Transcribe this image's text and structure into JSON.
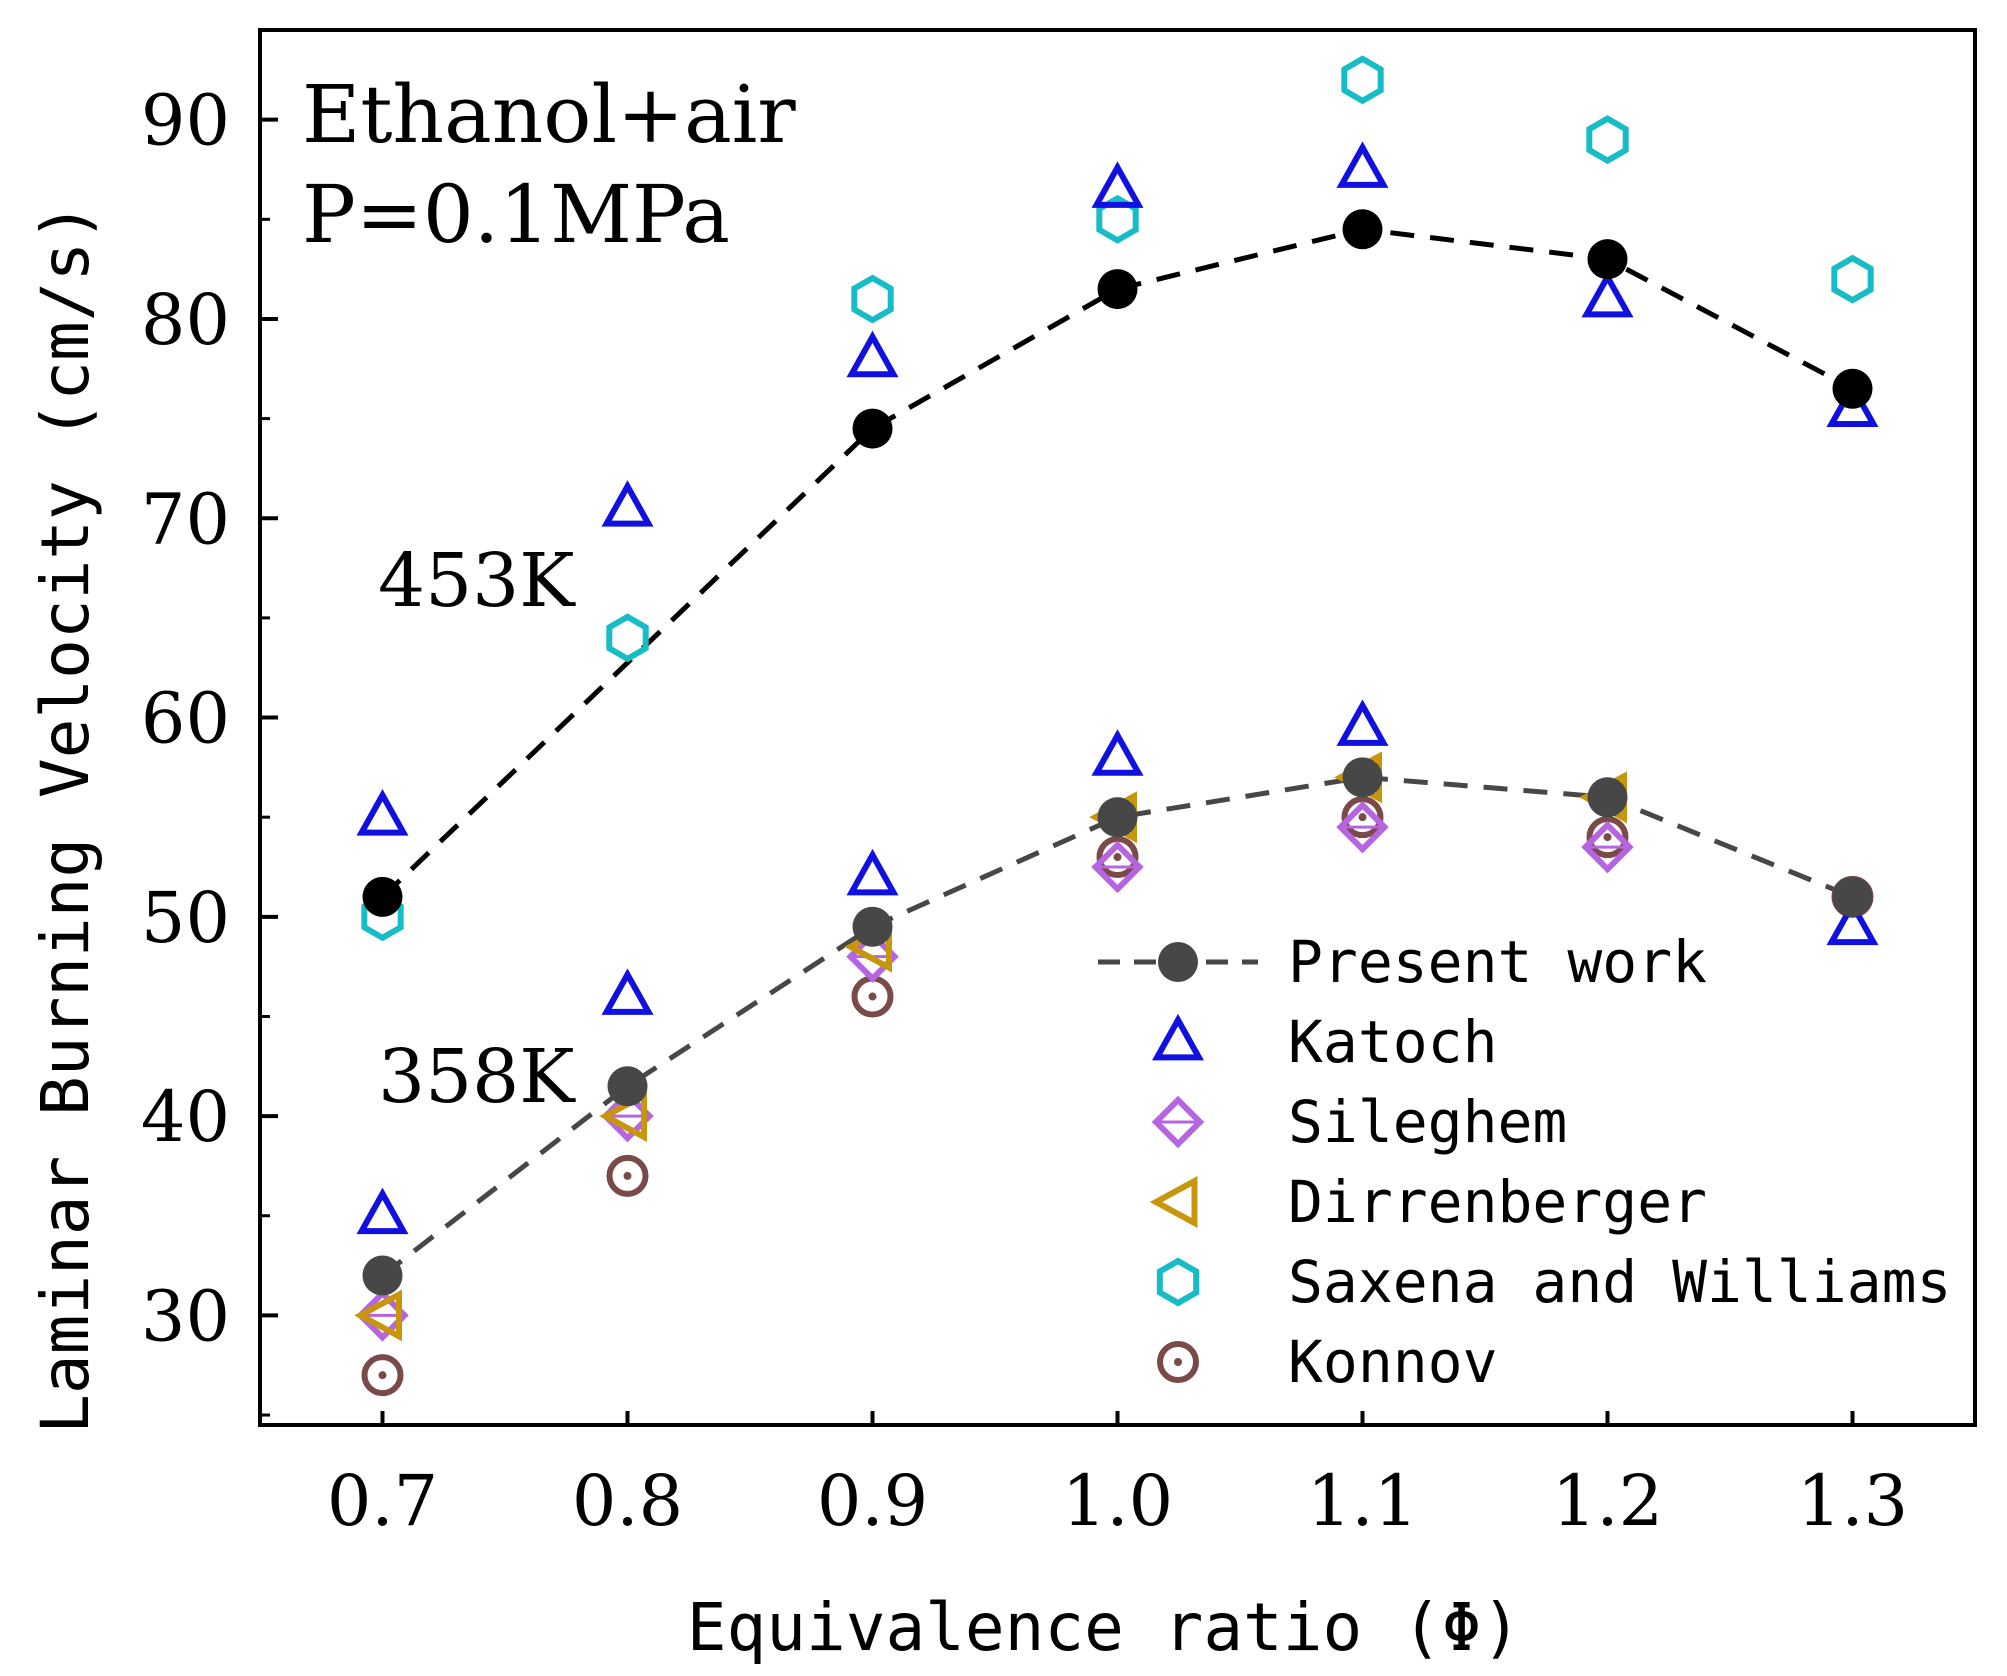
{
  "chart_data": {
    "type": "scatter",
    "xlabel": "Equivalence ratio (Φ)",
    "ylabel": "Laminar Burning Velocity (cm/s)",
    "xlim": [
      0.65,
      1.35
    ],
    "ylim": [
      24.5,
      94.5
    ],
    "xticks": [
      "0.7",
      "0.8",
      "0.9",
      "1.0",
      "1.1",
      "1.2",
      "1.3"
    ],
    "yticks": [
      "30",
      "40",
      "50",
      "60",
      "70",
      "80",
      "90"
    ],
    "annotations": {
      "fuel": "Ethanol+air",
      "pressure": "P=0.1MPa",
      "temp_high": "453K",
      "temp_low": "358K"
    },
    "legend": [
      "Present work",
      "Katoch",
      "Sileghem",
      "Dirrenberger",
      "Saxena and Williams",
      "Konnov"
    ],
    "series": [
      {
        "name": "Present work",
        "temperature": "453K",
        "marker": "circle",
        "color": "#000000",
        "line": true,
        "x": [
          0.7,
          0.8,
          0.9,
          1.0,
          1.1,
          1.2,
          1.3
        ],
        "y": [
          51.0,
          null,
          74.5,
          81.5,
          84.5,
          83.0,
          76.5
        ]
      },
      {
        "name": "Katoch",
        "temperature": "453K",
        "marker": "triangle-up",
        "color": "#1010e0",
        "x": [
          0.7,
          0.8,
          0.9,
          1.0,
          1.1,
          1.2,
          1.3
        ],
        "y": [
          55.0,
          70.5,
          78.0,
          86.5,
          87.5,
          81.0,
          75.5
        ]
      },
      {
        "name": "Saxena and Williams",
        "temperature": "453K",
        "marker": "hexagon",
        "color": "#17bcc6",
        "x": [
          0.7,
          0.8,
          0.9,
          1.0,
          1.1,
          1.2,
          1.3
        ],
        "y": [
          50.0,
          64.0,
          81.0,
          85.0,
          92.0,
          89.0,
          82.0
        ]
      },
      {
        "name": "Present work",
        "temperature": "358K",
        "marker": "circle",
        "color": "#474747",
        "line": true,
        "x": [
          0.7,
          0.8,
          0.9,
          1.0,
          1.1,
          1.2,
          1.3
        ],
        "y": [
          32.0,
          41.5,
          49.5,
          55.0,
          57.0,
          56.0,
          51.0
        ]
      },
      {
        "name": "Katoch",
        "temperature": "358K",
        "marker": "triangle-up",
        "color": "#1010e0",
        "x": [
          0.7,
          0.8,
          0.9,
          1.0,
          1.1,
          1.2,
          1.3
        ],
        "y": [
          35.0,
          46.0,
          52.0,
          58.0,
          59.5,
          null,
          49.5
        ]
      },
      {
        "name": "Sileghem",
        "temperature": "358K",
        "marker": "diamond",
        "color": "#b565e0",
        "x": [
          0.7,
          0.8,
          0.9,
          1.0,
          1.1,
          1.2
        ],
        "y": [
          30.0,
          40.0,
          48.0,
          52.5,
          54.5,
          53.5
        ]
      },
      {
        "name": "Dirrenberger",
        "temperature": "358K",
        "marker": "triangle-left",
        "color": "#c8960a",
        "x": [
          0.7,
          0.8,
          0.9,
          1.0,
          1.1,
          1.2
        ],
        "y": [
          30.0,
          40.0,
          48.5,
          55.0,
          57.0,
          56.0
        ]
      },
      {
        "name": "Konnov",
        "temperature": "358K",
        "marker": "circle-dot",
        "color": "#7a4a48",
        "x": [
          0.7,
          0.8,
          0.9,
          1.0,
          1.1,
          1.2,
          1.3
        ],
        "y": [
          27.0,
          37.0,
          46.0,
          53.0,
          55.0,
          54.0,
          51.0
        ]
      }
    ]
  }
}
